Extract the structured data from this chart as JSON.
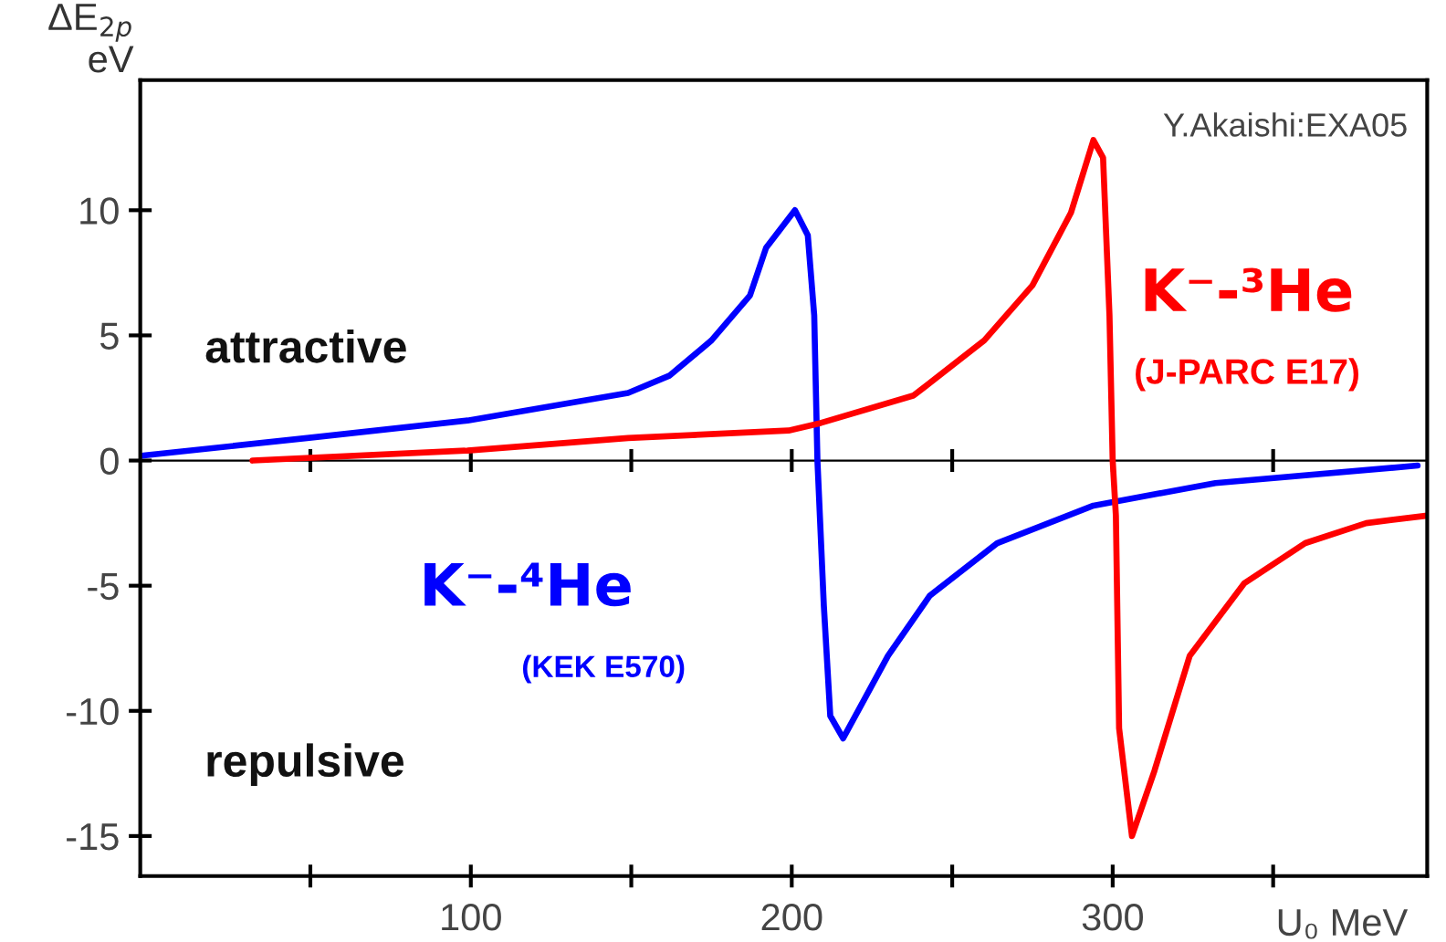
{
  "chart_data": {
    "type": "line",
    "xlabel": "U₀ MeV",
    "ylabel": "ΔE$_{2p}$\neV",
    "xlim": [
      -3,
      398
    ],
    "ylim": [
      -16.6,
      15.2
    ],
    "xticks": [
      {
        "value": 50,
        "label": null
      },
      100,
      {
        "value": 150,
        "label": null
      },
      200,
      {
        "value": 250,
        "label": null
      },
      300,
      {
        "value": 350,
        "label": null
      }
    ],
    "yticks": [
      -15,
      -10,
      -5,
      0,
      5,
      10
    ],
    "grid": false,
    "legend": false,
    "marker": "none",
    "line_style": "solid",
    "ref_lines": [
      {
        "axis": "y",
        "value": 0,
        "color": "#000000"
      }
    ],
    "series": [
      {
        "name": "K⁻-⁴He",
        "color": "#0000ff",
        "x": [
          -2,
          49,
          99,
          149,
          162,
          175,
          187,
          192,
          201,
          205,
          207,
          208,
          210,
          212,
          216,
          230,
          243,
          264,
          294,
          332,
          395
        ],
        "values": [
          0.2,
          0.9,
          1.6,
          2.7,
          3.4,
          4.8,
          6.6,
          8.5,
          10.0,
          9.0,
          5.8,
          0,
          -5.8,
          -10.2,
          -11.1,
          -7.8,
          -5.4,
          -3.3,
          -1.8,
          -0.9,
          -0.2
        ]
      },
      {
        "name": "K⁻-³He",
        "color": "#ff0000",
        "x": [
          32,
          99,
          149,
          199,
          209,
          238,
          260,
          275,
          287,
          294,
          297,
          299,
          300,
          301,
          302,
          306,
          313,
          324,
          341,
          360,
          379,
          398
        ],
        "values": [
          0,
          0.4,
          0.9,
          1.2,
          1.5,
          2.6,
          4.8,
          7.0,
          9.9,
          12.8,
          12.1,
          5.8,
          0,
          -2.2,
          -10.7,
          -15.0,
          -12.4,
          -7.8,
          -4.9,
          -3.3,
          -2.5,
          -2.2
        ]
      }
    ],
    "annotations": [
      "attractive",
      "repulsive",
      "(KEK E570)",
      "(J-PARC E17)",
      "Y.Akaishi:EXA05"
    ]
  }
}
